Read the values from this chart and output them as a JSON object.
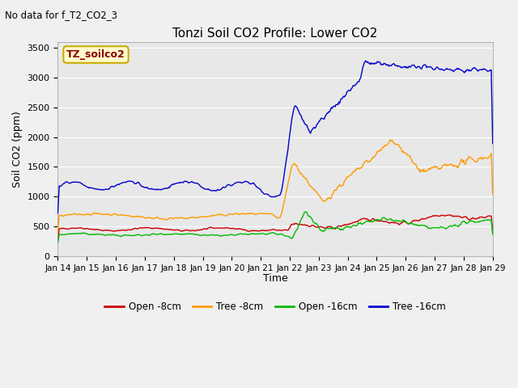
{
  "title": "Tonzi Soil CO2 Profile: Lower CO2",
  "subtitle": "No data for f_T2_CO2_3",
  "xlabel": "Time",
  "ylabel": "Soil CO2 (ppm)",
  "ylim": [
    0,
    3600
  ],
  "yticks": [
    0,
    500,
    1000,
    1500,
    2000,
    2500,
    3000,
    3500
  ],
  "legend_label": "TZ_soilco2",
  "legend_entries": [
    "Open -8cm",
    "Tree -8cm",
    "Open -16cm",
    "Tree -16cm"
  ],
  "legend_colors": [
    "#cc0000",
    "#ff9900",
    "#00bb00",
    "#0000cc"
  ],
  "background_color": "#f0f0f0",
  "plot_bg_color": "#e8e8e8",
  "xtick_labels": [
    "Jan 14",
    "Jan 15",
    "Jan 16",
    "Jan 17",
    "Jan 18",
    "Jan 19",
    "Jan 20",
    "Jan 21",
    "Jan 22",
    "Jan 23",
    "Jan 24",
    "Jan 25",
    "Jan 26",
    "Jan 27",
    "Jan 28",
    "Jan 29"
  ]
}
